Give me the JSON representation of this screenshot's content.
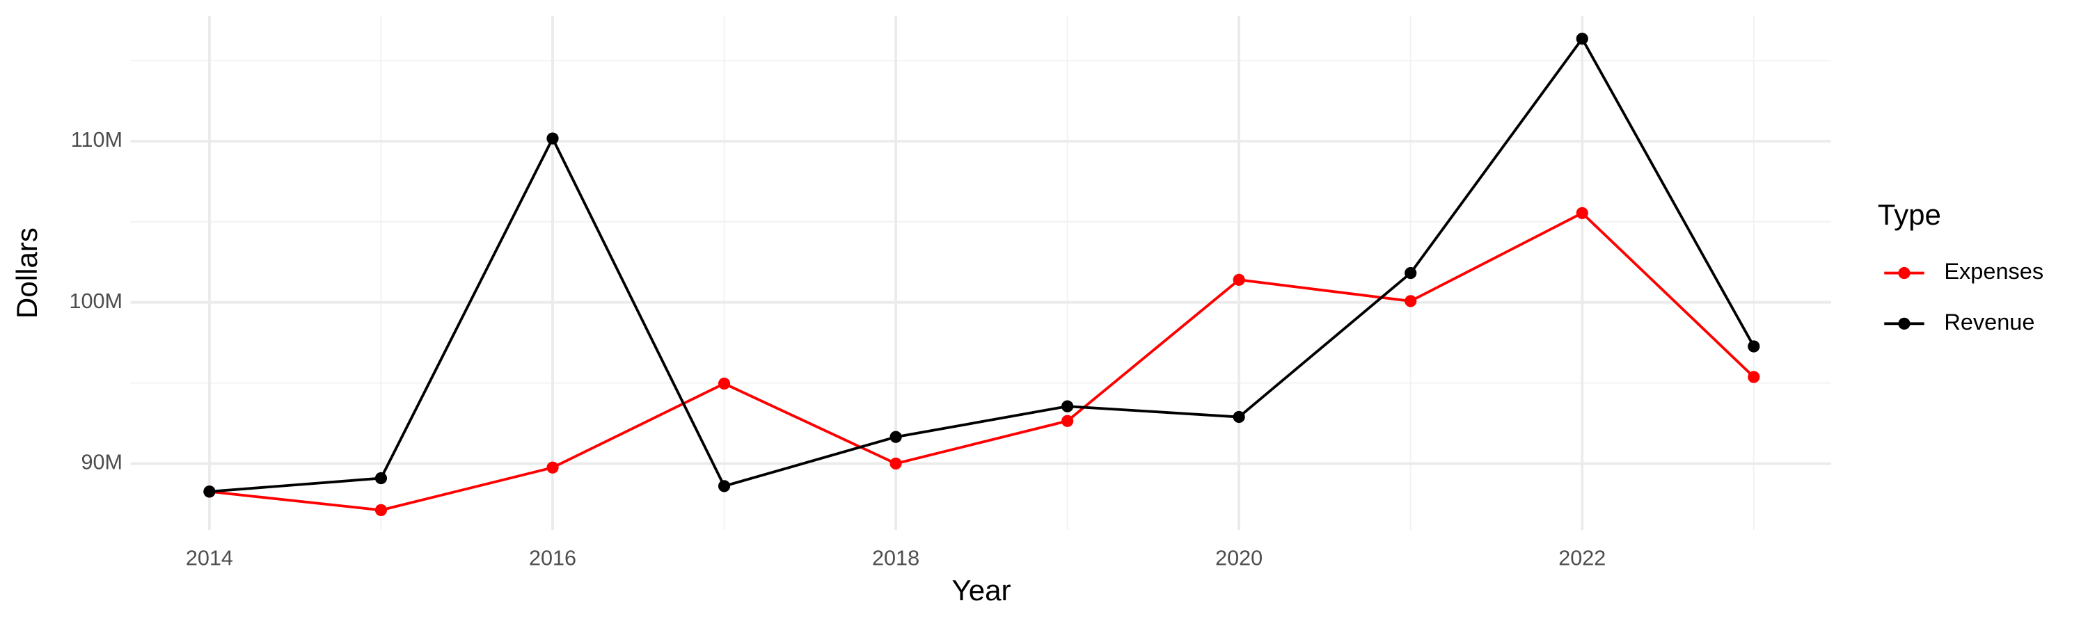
{
  "chart_data": {
    "type": "line",
    "x_label": "Year",
    "y_label": "Dollars",
    "legend_title": "Type",
    "legend_position": "right",
    "grid": true,
    "x": [
      2014,
      2015,
      2016,
      2017,
      2018,
      2019,
      2020,
      2021,
      2022,
      2023
    ],
    "series": [
      {
        "name": "Expenses",
        "color": "#ff0000",
        "values": [
          88260000,
          87110000,
          89750000,
          94960000,
          90000000,
          92640000,
          101400000,
          100080000,
          105540000,
          95370000
        ]
      },
      {
        "name": "Revenue",
        "color": "#000000",
        "values": [
          88260000,
          89090000,
          110170000,
          88600000,
          91650000,
          93550000,
          92890000,
          101820000,
          116360000,
          97270000
        ]
      }
    ],
    "xlim": [
      2013.54,
      2023.45
    ],
    "xticks": [
      2014,
      2016,
      2018,
      2020,
      2022
    ],
    "ylim": [
      85870000,
      117770000
    ],
    "yticks": [
      {
        "value": 90000000,
        "label": "90M"
      },
      {
        "value": 100000000,
        "label": "100M"
      },
      {
        "value": 110000000,
        "label": "110M"
      }
    ]
  }
}
